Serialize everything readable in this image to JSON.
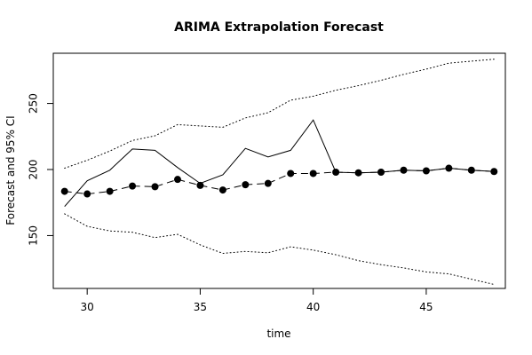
{
  "chart_data": {
    "type": "line",
    "title": "ARIMA Extrapolation Forecast",
    "xlabel": "time",
    "ylabel": "Forecast and 95% CI",
    "xlim": [
      28.5,
      48.5
    ],
    "ylim": [
      110,
      288
    ],
    "x_ticks": [
      30,
      35,
      40,
      45
    ],
    "y_ticks": [
      150,
      200,
      250
    ],
    "grid": false,
    "legend": "none",
    "series": [
      {
        "x": [
          29,
          30,
          31,
          32,
          33,
          34,
          35,
          36,
          37,
          38,
          39,
          40,
          41,
          42,
          43,
          44,
          45,
          46,
          47,
          48
        ],
        "values": [
          172,
          191.5,
          199.5,
          215.5,
          214.5,
          201.5,
          189.5,
          196,
          216,
          209.5,
          214.5,
          237.5,
          198,
          197.5,
          198,
          199.5,
          199,
          201,
          199.5,
          198.5
        ],
        "style": "solid"
      },
      {
        "x": [
          29,
          30,
          31,
          32,
          33,
          34,
          35,
          36,
          37,
          38,
          39,
          40,
          41,
          42,
          43,
          44,
          45,
          46,
          47,
          48
        ],
        "values": [
          183.5,
          181.5,
          183.5,
          187.5,
          187,
          192.5,
          188,
          184.5,
          188.5,
          189.5,
          197,
          197,
          198,
          197.5,
          198,
          199.5,
          199,
          201,
          199.5,
          198.5
        ],
        "style": "dashed-points"
      },
      {
        "x": [
          29,
          30,
          31,
          32,
          33,
          34,
          35,
          36,
          37,
          38,
          39,
          40,
          41,
          42,
          43,
          44,
          45,
          46,
          47,
          48
        ],
        "values": [
          201,
          207,
          214,
          222,
          225.5,
          234,
          233,
          232,
          239,
          243,
          252.5,
          255.5,
          260,
          263.5,
          267.5,
          272,
          276,
          280.5,
          282,
          283.5
        ],
        "style": "dotted"
      },
      {
        "x": [
          29,
          30,
          31,
          32,
          33,
          34,
          35,
          36,
          37,
          38,
          39,
          40,
          41,
          42,
          43,
          44,
          45,
          46,
          47,
          48
        ],
        "values": [
          166.5,
          157,
          153.5,
          152.5,
          148.5,
          151,
          143,
          136.5,
          138,
          137,
          141.5,
          139,
          135.5,
          131,
          128,
          125.5,
          122.5,
          121,
          117,
          113
        ],
        "style": "dotted"
      }
    ]
  }
}
